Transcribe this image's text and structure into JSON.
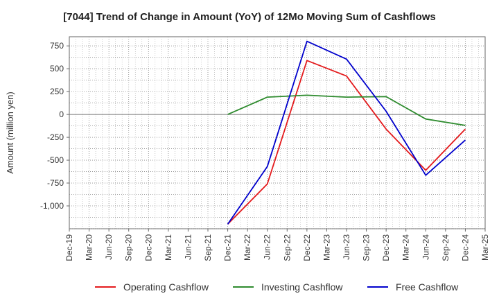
{
  "chart_data": {
    "type": "line",
    "title": "[7044]  Trend of Change in Amount (YoY) of 12Mo Moving Sum of Cashflows",
    "xlabel": "",
    "ylabel": "Amount (million yen)",
    "ylim": [
      -1250,
      850
    ],
    "yticks": [
      750,
      500,
      250,
      0,
      -250,
      -500,
      -750,
      -1000
    ],
    "ytick_labels": [
      "750",
      "500",
      "250",
      "0",
      "-250",
      "-500",
      "-750",
      "-1,000"
    ],
    "categories": [
      "Dec-19",
      "Mar-20",
      "Jun-20",
      "Sep-20",
      "Dec-20",
      "Mar-21",
      "Jun-21",
      "Sep-21",
      "Dec-21",
      "Mar-22",
      "Jun-22",
      "Sep-22",
      "Dec-22",
      "Mar-23",
      "Jun-23",
      "Sep-23",
      "Dec-23",
      "Mar-24",
      "Jun-24",
      "Sep-24",
      "Dec-24",
      "Mar-25"
    ],
    "grid": true,
    "legend_position": "bottom",
    "series": [
      {
        "name": "Operating Cashflow",
        "color": "#e41a1c",
        "values": [
          null,
          null,
          null,
          null,
          null,
          null,
          null,
          null,
          -1200,
          null,
          -760,
          null,
          590,
          null,
          420,
          null,
          -160,
          null,
          -610,
          null,
          -160,
          null
        ]
      },
      {
        "name": "Investing Cashflow",
        "color": "#2e8b2e",
        "values": [
          null,
          null,
          null,
          null,
          null,
          null,
          null,
          null,
          0,
          null,
          190,
          null,
          210,
          null,
          190,
          null,
          195,
          null,
          -50,
          null,
          -120,
          null
        ]
      },
      {
        "name": "Free Cashflow",
        "color": "#0000cc",
        "values": [
          null,
          null,
          null,
          null,
          null,
          null,
          null,
          null,
          -1200,
          null,
          -570,
          null,
          800,
          null,
          605,
          null,
          35,
          null,
          -665,
          null,
          -280,
          null
        ]
      }
    ]
  }
}
